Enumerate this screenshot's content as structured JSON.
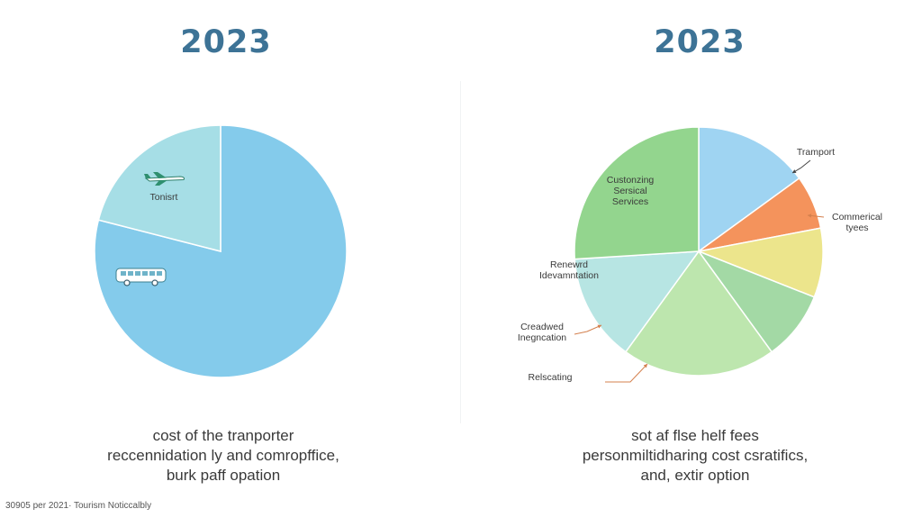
{
  "colors": {
    "title": "#3d7396",
    "annotation": "#d4804e"
  },
  "footnote": "30905 per 2021· Tourism Noticcalbly",
  "chart_data": [
    {
      "type": "pie",
      "title": "2023",
      "caption": [
        "cost of the tranporter",
        "reccennidation ly and comropffice,",
        "burk paff opation"
      ],
      "slices": [
        {
          "label": "",
          "value": 79,
          "color": "#84cbeb",
          "icon": "bus-icon"
        },
        {
          "label": "Tonisrt",
          "value": 21,
          "color": "#a6dee6",
          "icon": "airplane-icon"
        }
      ]
    },
    {
      "type": "pie",
      "title": "2023",
      "caption": [
        "sot af flse helf fees",
        "personmiltidharing cost csratifics,",
        "and, extir option"
      ],
      "slices": [
        {
          "label": "Tramport",
          "value": 15,
          "color": "#9fd4f2"
        },
        {
          "label": "Commerical tyees",
          "value": 7,
          "color": "#f4935c"
        },
        {
          "label": "",
          "value": 9,
          "color": "#ece58c"
        },
        {
          "label": "",
          "value": 9,
          "color": "#a3d9a5"
        },
        {
          "label": "Relscating",
          "value": 20,
          "color": "#bde6ae"
        },
        {
          "label": "Creadwed Inegncation",
          "value": 0,
          "color": "#d4804e"
        },
        {
          "label": "Renewrd Idevamntation",
          "value": 14,
          "color": "#b7e5e3"
        },
        {
          "label": "Custonzing Sersical Services",
          "value": 26,
          "color": "#93d58e"
        }
      ]
    }
  ]
}
